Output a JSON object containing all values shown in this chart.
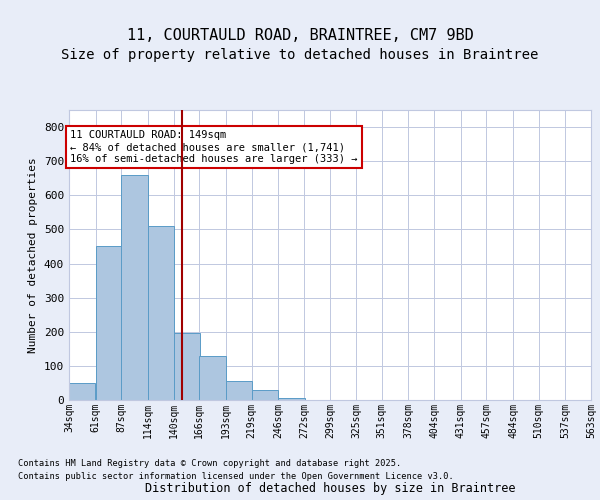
{
  "title_line1": "11, COURTAULD ROAD, BRAINTREE, CM7 9BD",
  "title_line2": "Size of property relative to detached houses in Braintree",
  "xlabel": "Distribution of detached houses by size in Braintree",
  "ylabel": "Number of detached properties",
  "footnote1": "Contains HM Land Registry data © Crown copyright and database right 2025.",
  "footnote2": "Contains public sector information licensed under the Open Government Licence v3.0.",
  "bin_labels": [
    "34sqm",
    "61sqm",
    "87sqm",
    "114sqm",
    "140sqm",
    "166sqm",
    "193sqm",
    "219sqm",
    "246sqm",
    "272sqm",
    "299sqm",
    "325sqm",
    "351sqm",
    "378sqm",
    "404sqm",
    "431sqm",
    "457sqm",
    "484sqm",
    "510sqm",
    "537sqm",
    "563sqm"
  ],
  "bar_heights": [
    50,
    450,
    660,
    510,
    195,
    130,
    55,
    28,
    5,
    1,
    0,
    0,
    0,
    0,
    0,
    0,
    0,
    0,
    0,
    0,
    0
  ],
  "bin_edges": [
    34,
    61,
    87,
    114,
    140,
    166,
    193,
    219,
    246,
    272,
    299,
    325,
    351,
    378,
    404,
    431,
    457,
    484,
    510,
    537,
    563
  ],
  "bar_color": "#adc6e0",
  "bar_edge_color": "#5a9bc7",
  "vline_x": 149,
  "vline_color": "#a00000",
  "annotation_text": "11 COURTAULD ROAD: 149sqm\n← 84% of detached houses are smaller (1,741)\n16% of semi-detached houses are larger (333) →",
  "annotation_box_color": "#ffffff",
  "annotation_box_edge": "#cc0000",
  "ylim": [
    0,
    850
  ],
  "yticks": [
    0,
    100,
    200,
    300,
    400,
    500,
    600,
    700,
    800
  ],
  "background_color": "#e8edf8",
  "plot_background": "#ffffff",
  "grid_color": "#c0c8e0",
  "title_fontsize": 11,
  "subtitle_fontsize": 10
}
